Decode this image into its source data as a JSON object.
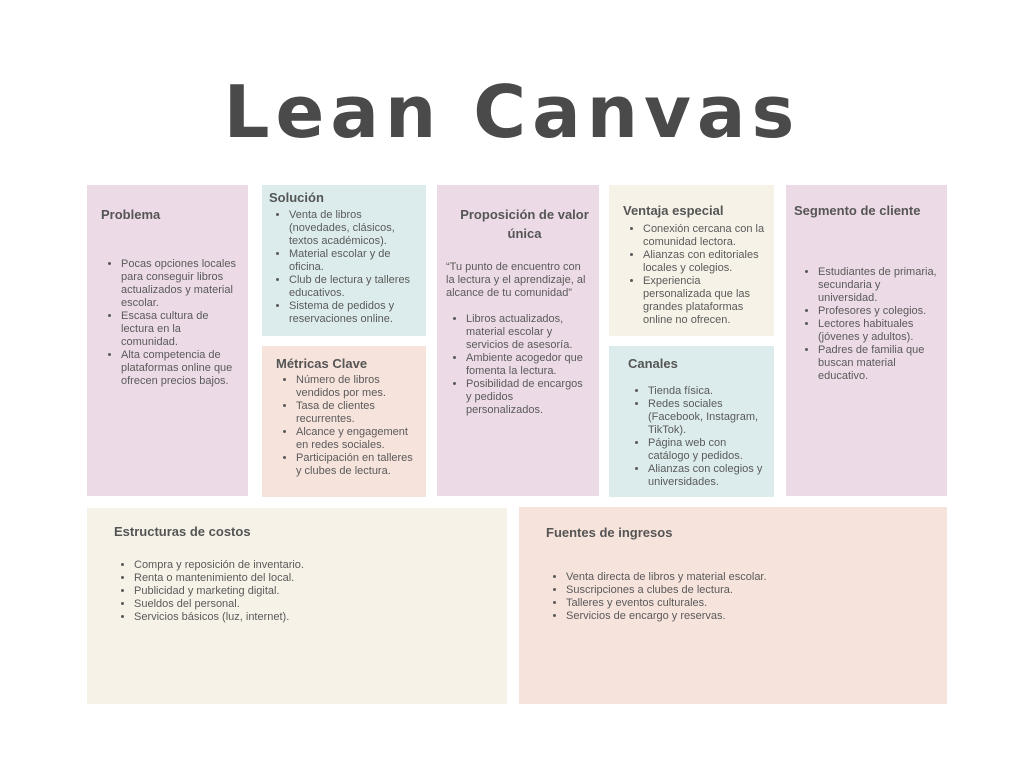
{
  "title": "Lean Canvas",
  "sections": {
    "problema": {
      "heading": "Problema",
      "items": [
        "Pocas opciones locales para conseguir libros actualizados y material escolar.",
        "Escasa cultura de lectura en la comunidad.",
        "Alta competencia de plataformas online que ofrecen precios bajos."
      ]
    },
    "solucion": {
      "heading": "Solución",
      "items": [
        "Venta de libros (novedades, clásicos, textos académicos).",
        "Material escolar y de oficina.",
        "Club de lectura y talleres educativos.",
        "Sistema de pedidos y reservaciones online."
      ]
    },
    "metricas": {
      "heading": "Métricas Clave",
      "items": [
        "Número de libros vendidos por mes.",
        "Tasa de clientes recurrentes.",
        "Alcance y engagement en redes sociales.",
        "Participación en talleres y clubes de lectura."
      ]
    },
    "propuesta": {
      "heading": "Proposición de valor única",
      "quote": "“Tu punto de encuentro con la lectura y el aprendizaje, al alcance de tu comunidad”",
      "items": [
        "Libros actualizados, material escolar y servicios de asesoría.",
        "Ambiente acogedor que fomenta la lectura.",
        "Posibilidad de encargos y pedidos personalizados."
      ]
    },
    "ventaja": {
      "heading": "Ventaja especial",
      "items": [
        "Conexión cercana con la comunidad lectora.",
        "Alianzas con editoriales locales y colegios.",
        "Experiencia personalizada que las grandes plataformas online no ofrecen."
      ]
    },
    "canales": {
      "heading": "Canales",
      "items": [
        "Tienda física.",
        "Redes sociales (Facebook, Instagram, TikTok).",
        "Página web con catálogo y pedidos.",
        "Alianzas con colegios y universidades."
      ]
    },
    "segmento": {
      "heading": "Segmento de cliente",
      "items": [
        "Estudiantes de primaria, secundaria y universidad.",
        "Profesores y colegios.",
        "Lectores habituales (jóvenes y adultos).",
        "Padres de familia que buscan material educativo."
      ]
    },
    "costos": {
      "heading": "Estructuras de costos",
      "items": [
        "Compra y reposición de inventario.",
        "Renta o mantenimiento del local.",
        "Publicidad y marketing digital.",
        "Sueldos del personal.",
        "Servicios básicos (luz, internet)."
      ]
    },
    "ingresos": {
      "heading": "Fuentes de ingresos",
      "items": [
        "Venta directa de libros y material escolar.",
        "Suscripciones a clubes de lectura.",
        "Talleres y eventos culturales.",
        "Servicios de encargo y reservas."
      ]
    }
  },
  "colors": {
    "pink": "#ecdbe6",
    "teal": "#dcecec",
    "peach": "#f6e3dc",
    "cream": "#f6f2e7",
    "text": "#4d4d4d"
  }
}
